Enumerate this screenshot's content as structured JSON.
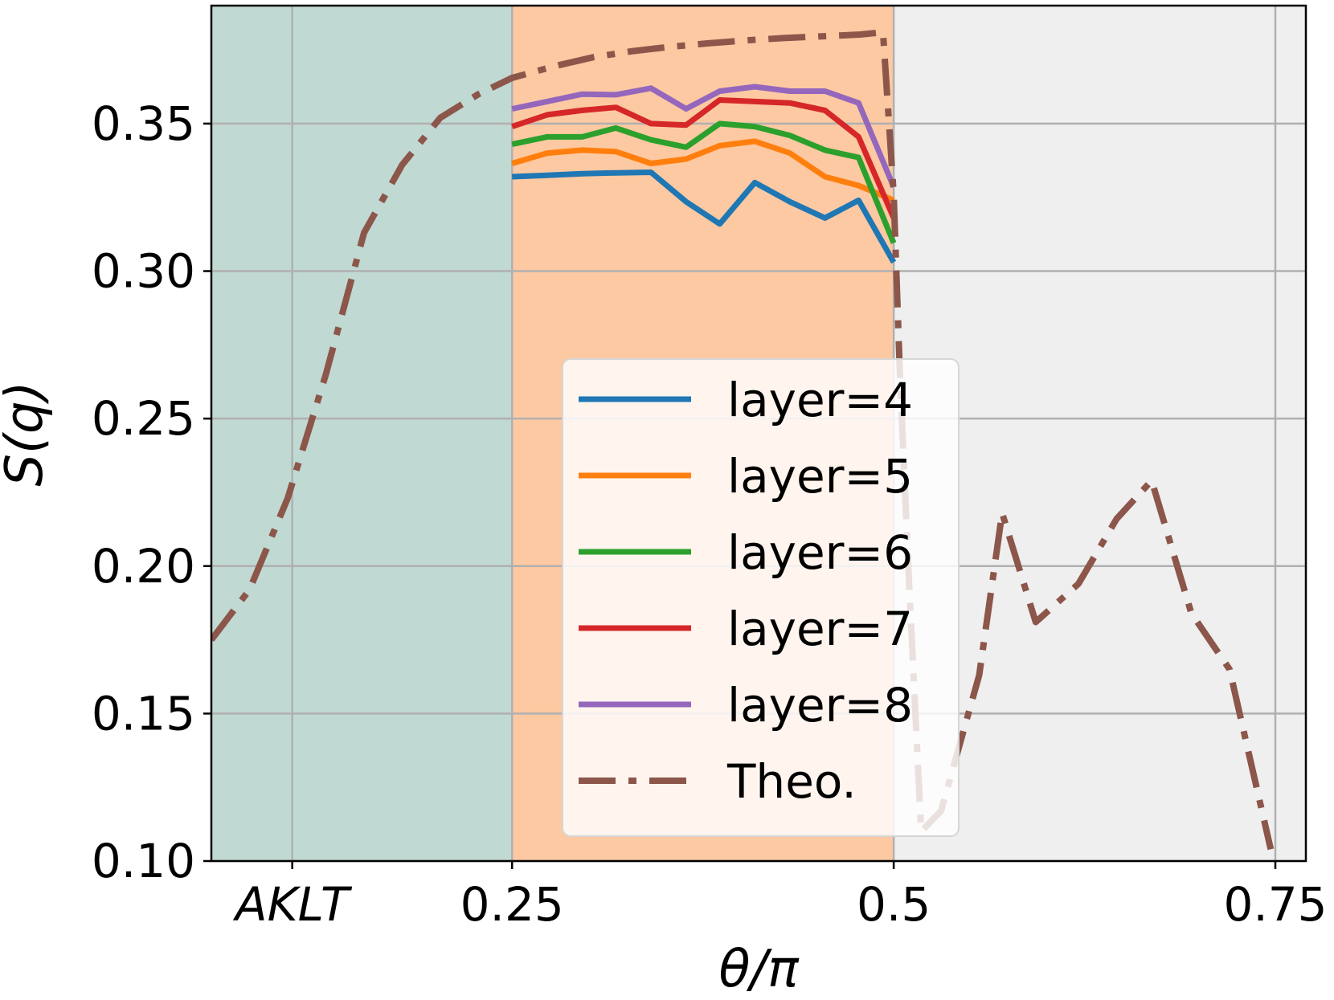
{
  "chart_data": {
    "type": "line",
    "xlabel": "θ/π",
    "ylabel": "S(q)",
    "xlim": [
      0.053,
      0.77
    ],
    "ylim": [
      0.1,
      0.39
    ],
    "x_ticks": [
      {
        "value": 0.106,
        "label": "AKLT",
        "italic": true
      },
      {
        "value": 0.25,
        "label": "0.25"
      },
      {
        "value": 0.5,
        "label": "0.5"
      },
      {
        "value": 0.75,
        "label": "0.75"
      }
    ],
    "y_ticks": [
      {
        "value": 0.1,
        "label": "0.10"
      },
      {
        "value": 0.15,
        "label": "0.15"
      },
      {
        "value": 0.2,
        "label": "0.20"
      },
      {
        "value": 0.25,
        "label": "0.25"
      },
      {
        "value": 0.3,
        "label": "0.30"
      },
      {
        "value": 0.35,
        "label": "0.35"
      }
    ],
    "grid": true,
    "legend_position": "lower-center",
    "regions": [
      {
        "x0": 0.053,
        "x1": 0.25,
        "color": "#c0d9d3"
      },
      {
        "x0": 0.25,
        "x1": 0.5,
        "color": "#fdc9a2"
      },
      {
        "x0": 0.5,
        "x1": 0.77,
        "color": "#efefef"
      }
    ],
    "series": [
      {
        "name": "layer=4",
        "color": "#1f77b4",
        "style": "solid",
        "x": [
          0.25,
          0.273,
          0.296,
          0.318,
          0.341,
          0.364,
          0.386,
          0.409,
          0.432,
          0.455,
          0.477,
          0.5
        ],
        "y": [
          0.332,
          0.3325,
          0.333,
          0.3333,
          0.3335,
          0.3235,
          0.316,
          0.33,
          0.3235,
          0.318,
          0.324,
          0.303
        ]
      },
      {
        "name": "layer=5",
        "color": "#ff7f0e",
        "style": "solid",
        "x": [
          0.25,
          0.273,
          0.296,
          0.318,
          0.341,
          0.364,
          0.386,
          0.409,
          0.432,
          0.455,
          0.477,
          0.5
        ],
        "y": [
          0.3365,
          0.34,
          0.341,
          0.3405,
          0.3365,
          0.338,
          0.3425,
          0.344,
          0.34,
          0.332,
          0.329,
          0.324
        ]
      },
      {
        "name": "layer=6",
        "color": "#2ca02c",
        "style": "solid",
        "x": [
          0.25,
          0.273,
          0.296,
          0.318,
          0.341,
          0.364,
          0.386,
          0.409,
          0.432,
          0.455,
          0.477,
          0.5
        ],
        "y": [
          0.343,
          0.3455,
          0.3455,
          0.3485,
          0.3445,
          0.342,
          0.35,
          0.349,
          0.346,
          0.341,
          0.3385,
          0.3095
        ]
      },
      {
        "name": "layer=7",
        "color": "#d62728",
        "style": "solid",
        "x": [
          0.25,
          0.273,
          0.296,
          0.318,
          0.341,
          0.364,
          0.386,
          0.409,
          0.432,
          0.455,
          0.477,
          0.5
        ],
        "y": [
          0.349,
          0.353,
          0.3545,
          0.3555,
          0.35,
          0.3495,
          0.358,
          0.3575,
          0.357,
          0.3545,
          0.3455,
          0.318
        ]
      },
      {
        "name": "layer=8",
        "color": "#9467bd",
        "style": "solid",
        "x": [
          0.25,
          0.273,
          0.296,
          0.318,
          0.341,
          0.364,
          0.386,
          0.409,
          0.432,
          0.455,
          0.477,
          0.5
        ],
        "y": [
          0.355,
          0.3575,
          0.36,
          0.3598,
          0.362,
          0.355,
          0.361,
          0.3625,
          0.361,
          0.361,
          0.357,
          0.3285
        ]
      },
      {
        "name": "Theo.",
        "color": "#8c564b",
        "style": "dashdot",
        "x": [
          0.053,
          0.078,
          0.103,
          0.128,
          0.153,
          0.178,
          0.203,
          0.228,
          0.25,
          0.278,
          0.303,
          0.328,
          0.353,
          0.378,
          0.403,
          0.428,
          0.453,
          0.478,
          0.493,
          0.5,
          0.504,
          0.51,
          0.518,
          0.531,
          0.556,
          0.571,
          0.593,
          0.621,
          0.646,
          0.669,
          0.695,
          0.72,
          0.747
        ],
        "y": [
          0.175,
          0.192,
          0.223,
          0.265,
          0.313,
          0.336,
          0.352,
          0.36,
          0.3655,
          0.3695,
          0.3725,
          0.3745,
          0.376,
          0.3772,
          0.3782,
          0.379,
          0.3796,
          0.3802,
          0.381,
          0.326,
          0.266,
          0.195,
          0.11,
          0.117,
          0.163,
          0.218,
          0.181,
          0.194,
          0.216,
          0.229,
          0.184,
          0.165,
          0.104
        ]
      }
    ]
  }
}
